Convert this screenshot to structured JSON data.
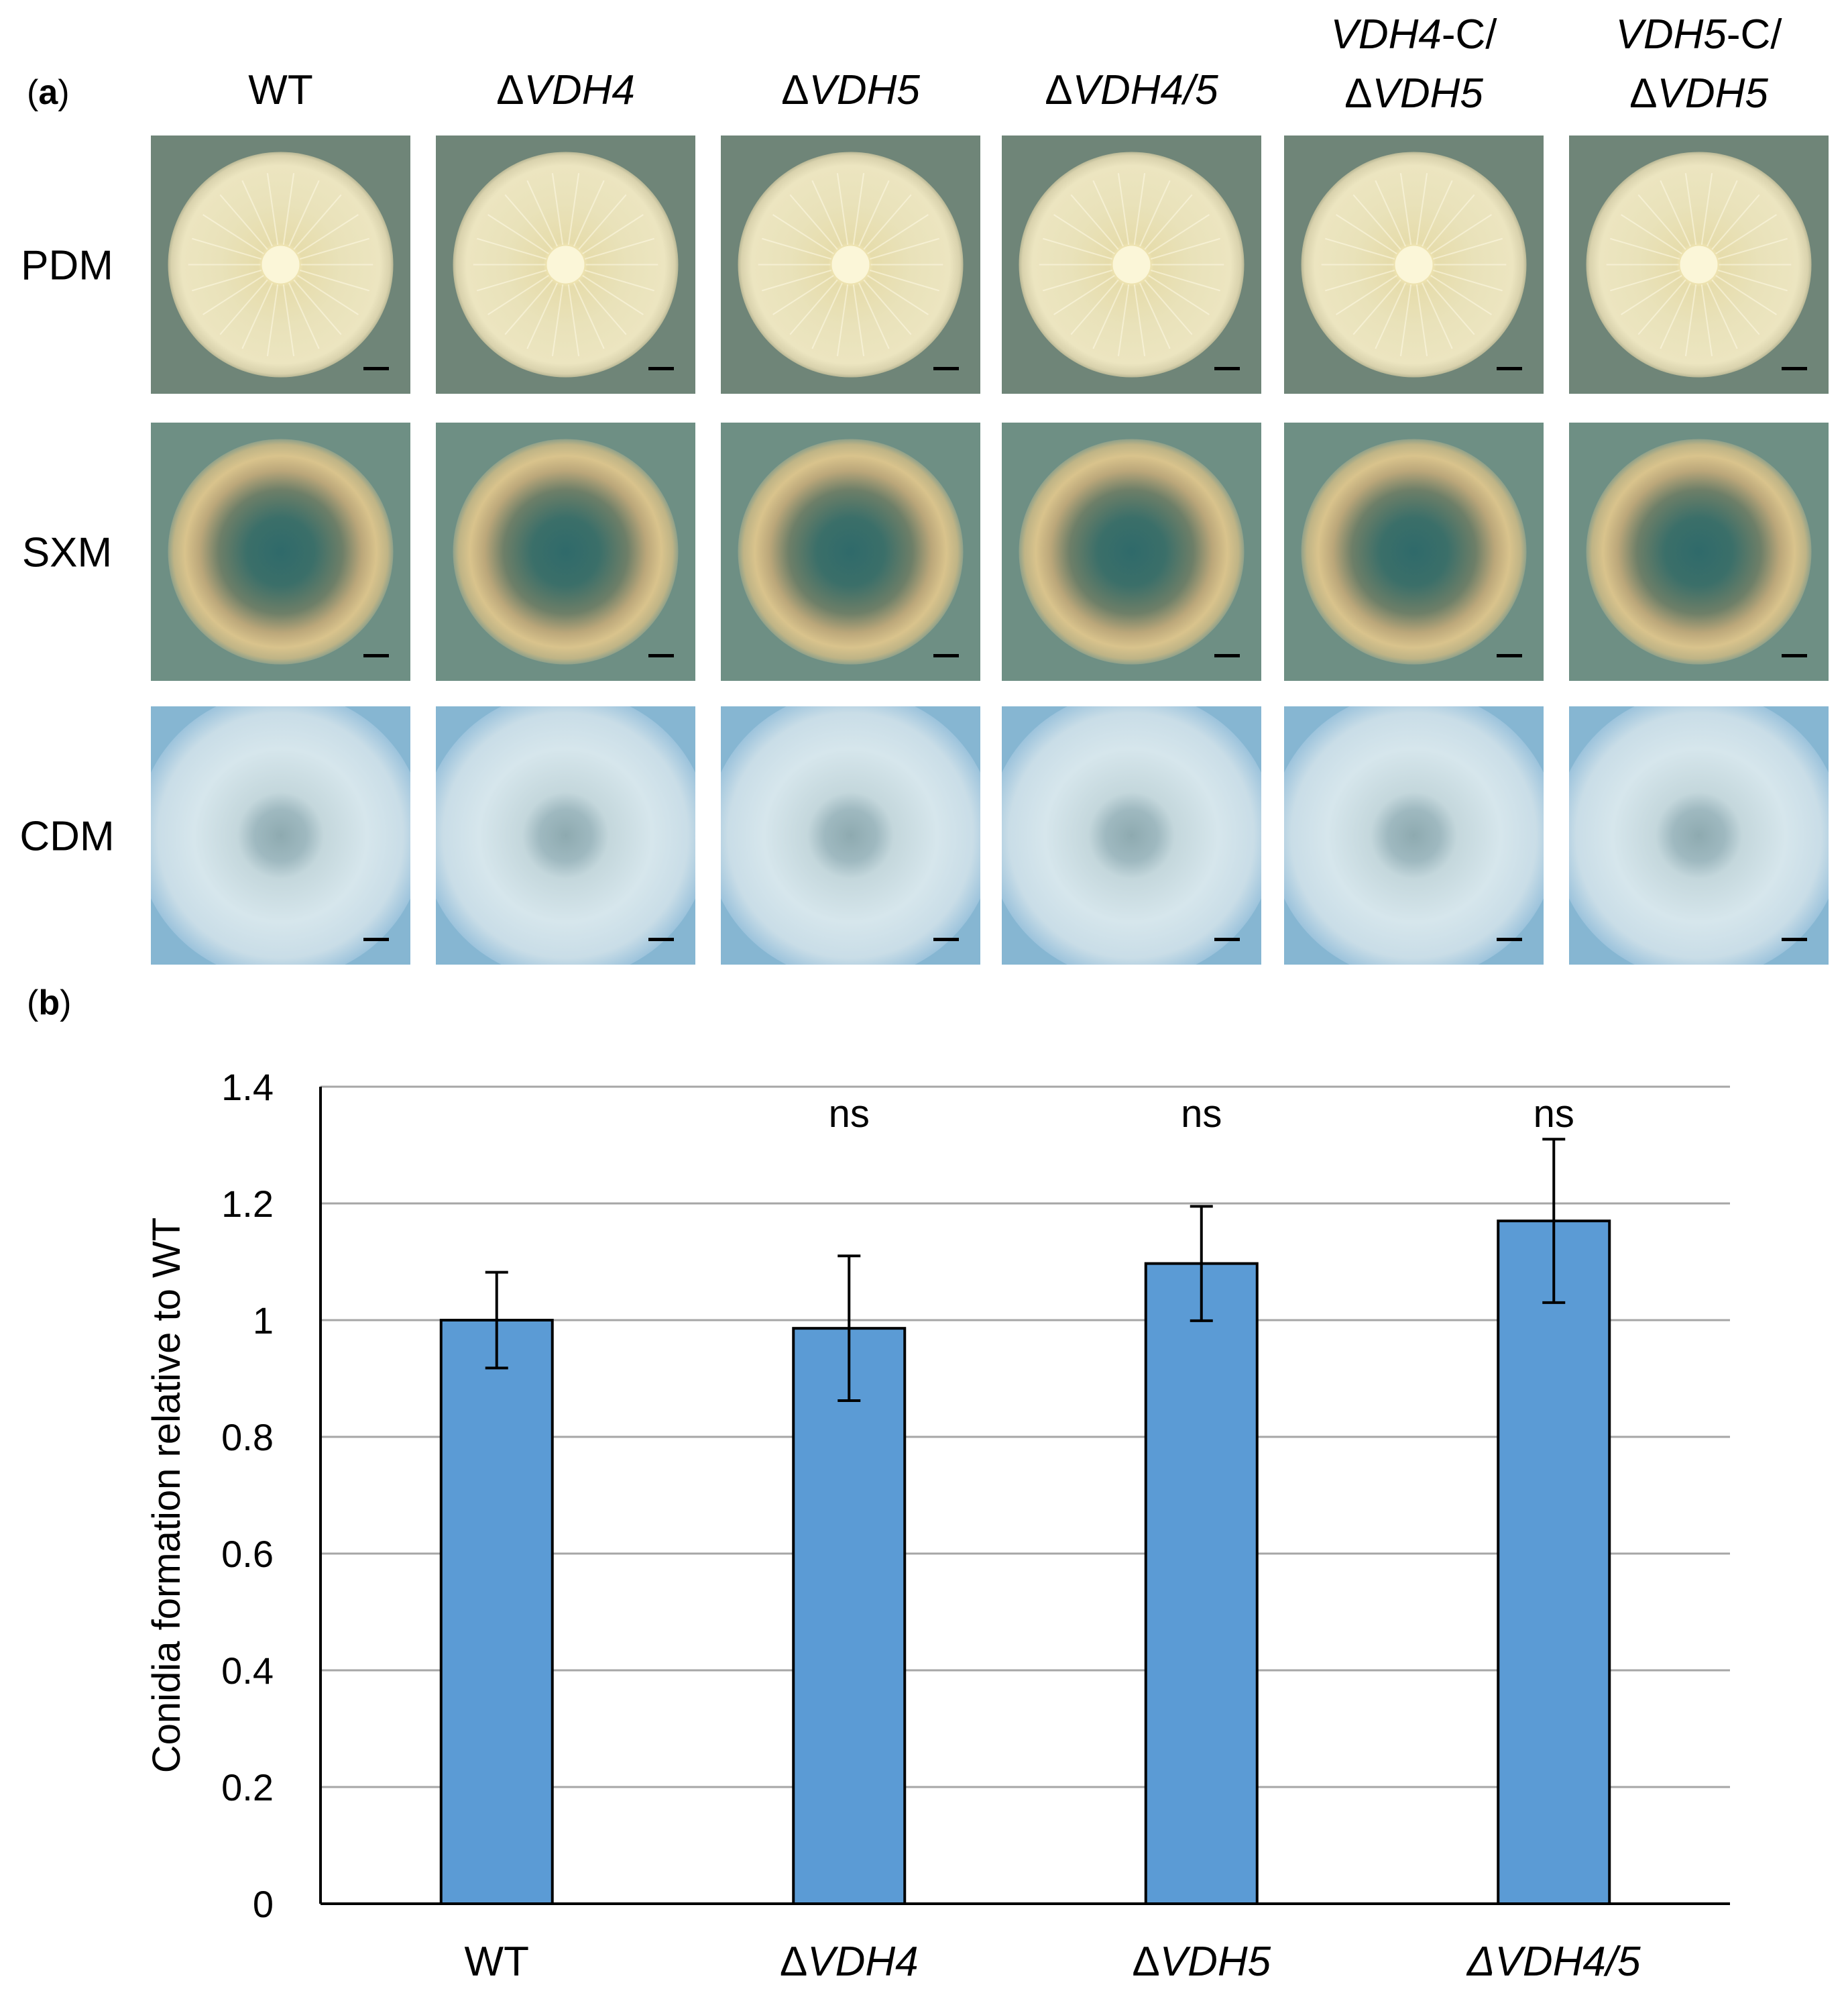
{
  "panel_a": {
    "label_letter": "a",
    "columns": [
      {
        "lines": [
          [
            {
              "t": "WT",
              "i": false
            }
          ]
        ]
      },
      {
        "lines": [
          [
            {
              "t": "Δ",
              "i": false
            },
            {
              "t": "VDH4",
              "i": true
            }
          ]
        ]
      },
      {
        "lines": [
          [
            {
              "t": "Δ",
              "i": false
            },
            {
              "t": "VDH5",
              "i": true
            }
          ]
        ]
      },
      {
        "lines": [
          [
            {
              "t": "Δ",
              "i": false
            },
            {
              "t": "VDH4/5",
              "i": true
            }
          ]
        ]
      },
      {
        "lines": [
          [
            {
              "t": "VDH4",
              "i": true
            },
            {
              "t": "-C/",
              "i": false
            }
          ],
          [
            {
              "t": "Δ",
              "i": false
            },
            {
              "t": "VDH5",
              "i": true
            }
          ]
        ]
      },
      {
        "lines": [
          [
            {
              "t": "VDH5",
              "i": true
            },
            {
              "t": "-C/",
              "i": false
            }
          ],
          [
            {
              "t": "Δ",
              "i": false
            },
            {
              "t": "VDH5",
              "i": true
            }
          ]
        ]
      }
    ],
    "rows": [
      {
        "label": "PDM",
        "plate_bg": "#6f8578",
        "colony": "pale-yellow-radial"
      },
      {
        "label": "SXM",
        "plate_bg": "#6e8f84",
        "colony": "yellow-ring-dark-center"
      },
      {
        "label": "CDM",
        "plate_bg": "#86b6d2",
        "colony": "white-fuzzy-grey-center"
      }
    ]
  },
  "panel_b": {
    "label_letter": "b"
  },
  "chart_data": {
    "type": "bar",
    "categories": [
      [
        {
          "t": "WT",
          "i": false
        }
      ],
      [
        {
          "t": "Δ",
          "i": false
        },
        {
          "t": "VDH4",
          "i": true
        }
      ],
      [
        {
          "t": "Δ",
          "i": false
        },
        {
          "t": "VDH5",
          "i": true
        }
      ],
      [
        {
          "t": "ΔVDH4/5",
          "i": true
        }
      ]
    ],
    "values": [
      1.0,
      0.986,
      1.097,
      1.17
    ],
    "error": [
      0.082,
      0.124,
      0.098,
      0.14
    ],
    "annotations": [
      "",
      "ns",
      "ns",
      "ns"
    ],
    "ylabel": "Conidia formation relative to WT",
    "ylim": [
      0,
      1.4
    ],
    "yticks": [
      0,
      0.2,
      0.4,
      0.6,
      0.8,
      1,
      1.2,
      1.4
    ],
    "ytick_labels": [
      "0",
      "0.2",
      "0.4",
      "0.6",
      "0.8",
      "1",
      "1.2",
      "1.4"
    ],
    "grid": true,
    "bar_color": "#5b9bd5"
  }
}
